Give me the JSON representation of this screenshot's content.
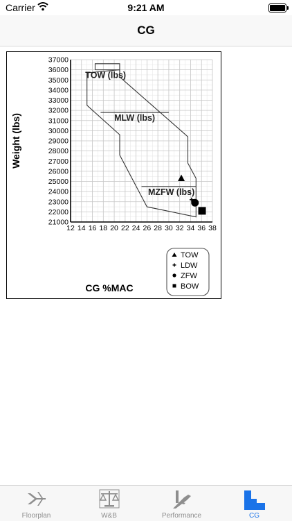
{
  "status_bar": {
    "carrier": "Carrier",
    "time": "9:21 AM"
  },
  "nav": {
    "title": "CG"
  },
  "colors": {
    "accent": "#1a73e8",
    "inactive": "#8e8e8e"
  },
  "chart_data": {
    "type": "scatter",
    "xlabel": "CG %MAC",
    "ylabel": "Weight (lbs)",
    "xlim": [
      12,
      38
    ],
    "ylim": [
      21000,
      37000
    ],
    "xticks": [
      "12",
      "14",
      "16",
      "18",
      "20",
      "22",
      "24",
      "26",
      "28",
      "30",
      "32",
      "34",
      "36",
      "38"
    ],
    "yticks": [
      "21000",
      "22000",
      "23000",
      "24000",
      "25000",
      "26000",
      "27000",
      "28000",
      "29000",
      "30000",
      "31000",
      "32000",
      "33000",
      "34000",
      "35000",
      "36000",
      "37000"
    ],
    "grid": true,
    "envelope": [
      [
        15,
        35700
      ],
      [
        15,
        32500
      ],
      [
        21,
        29600
      ],
      [
        21,
        27600
      ],
      [
        26,
        22500
      ],
      [
        35,
        21500
      ],
      [
        35,
        25300
      ],
      [
        33.5,
        26800
      ],
      [
        33.5,
        29400
      ],
      [
        21,
        35300
      ],
      [
        21,
        36000
      ],
      [
        15,
        35700
      ]
    ],
    "limit_lines": [
      {
        "label": "TOW (lbs)",
        "y": 36000,
        "x_from": 16.5,
        "x_to": 21
      },
      {
        "label": "MLW (lbs)",
        "y": 31800,
        "x_from": 17.5,
        "x_to": 30
      },
      {
        "label": "MZFW (lbs)",
        "y": 24500,
        "x_from": 25,
        "x_to": 35
      }
    ],
    "series": [
      {
        "name": "TOW",
        "marker": "triangle",
        "x": 32.3,
        "y": 25300
      },
      {
        "name": "LDW",
        "marker": "plus",
        "x": 34.2,
        "y": 23200
      },
      {
        "name": "ZFW",
        "marker": "circle",
        "x": 34.8,
        "y": 22900
      },
      {
        "name": "BOW",
        "marker": "square",
        "x": 36.1,
        "y": 22100
      }
    ],
    "legend_position": "bottom-right"
  },
  "tabs": [
    {
      "label": "Floorplan",
      "icon": "airplane-icon",
      "active": false
    },
    {
      "label": "W&B",
      "icon": "scale-icon",
      "active": false
    },
    {
      "label": "Performance",
      "icon": "takeoff-icon",
      "active": false
    },
    {
      "label": "CG",
      "icon": "cg-chart-icon",
      "active": true
    }
  ]
}
